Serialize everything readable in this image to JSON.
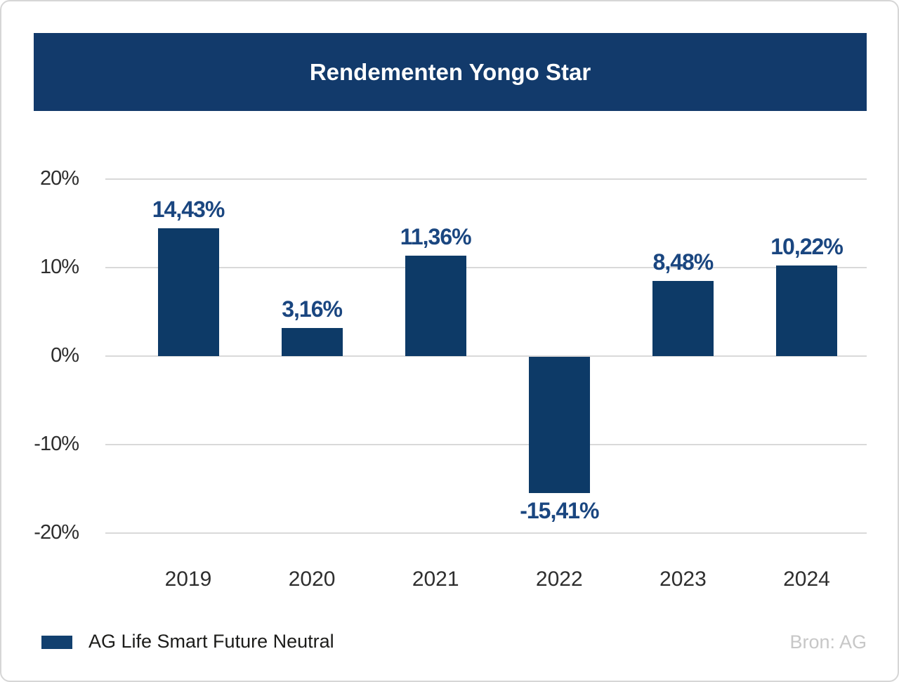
{
  "banner": {
    "title": "Rendementen Yongo Star",
    "bg_color": "#123a6b",
    "text_color": "#ffffff"
  },
  "chart_data": {
    "type": "bar",
    "title": "Rendementen Yongo Star",
    "categories": [
      "2019",
      "2020",
      "2021",
      "2022",
      "2023",
      "2024"
    ],
    "series": [
      {
        "name": "AG Life Smart Future Neutral",
        "values": [
          14.43,
          3.16,
          11.36,
          -15.41,
          8.48,
          10.22
        ]
      }
    ],
    "value_labels": [
      "14,43%",
      "3,16%",
      "11,36%",
      "-15,41%",
      "8,48%",
      "10,22%"
    ],
    "yticks": [
      {
        "value": 20,
        "label": "20%"
      },
      {
        "value": 10,
        "label": "10%"
      },
      {
        "value": 0,
        "label": "0%"
      },
      {
        "value": -10,
        "label": "-10%"
      },
      {
        "value": -20,
        "label": "-20%"
      }
    ],
    "ylim": [
      -20,
      20
    ],
    "xlabel": "",
    "ylabel": "",
    "grid": "horizontal-only",
    "gridline_color": "#d9d9d9",
    "bar_color": "#0d3a67",
    "value_label_color": "#1a4680",
    "tick_label_color": "#2e2e2e",
    "legend_position": "bottom-left"
  },
  "legend": {
    "swatch_color": "#12406f",
    "label": "AG Life Smart Future Neutral"
  },
  "source": {
    "label": "Bron: AG"
  }
}
